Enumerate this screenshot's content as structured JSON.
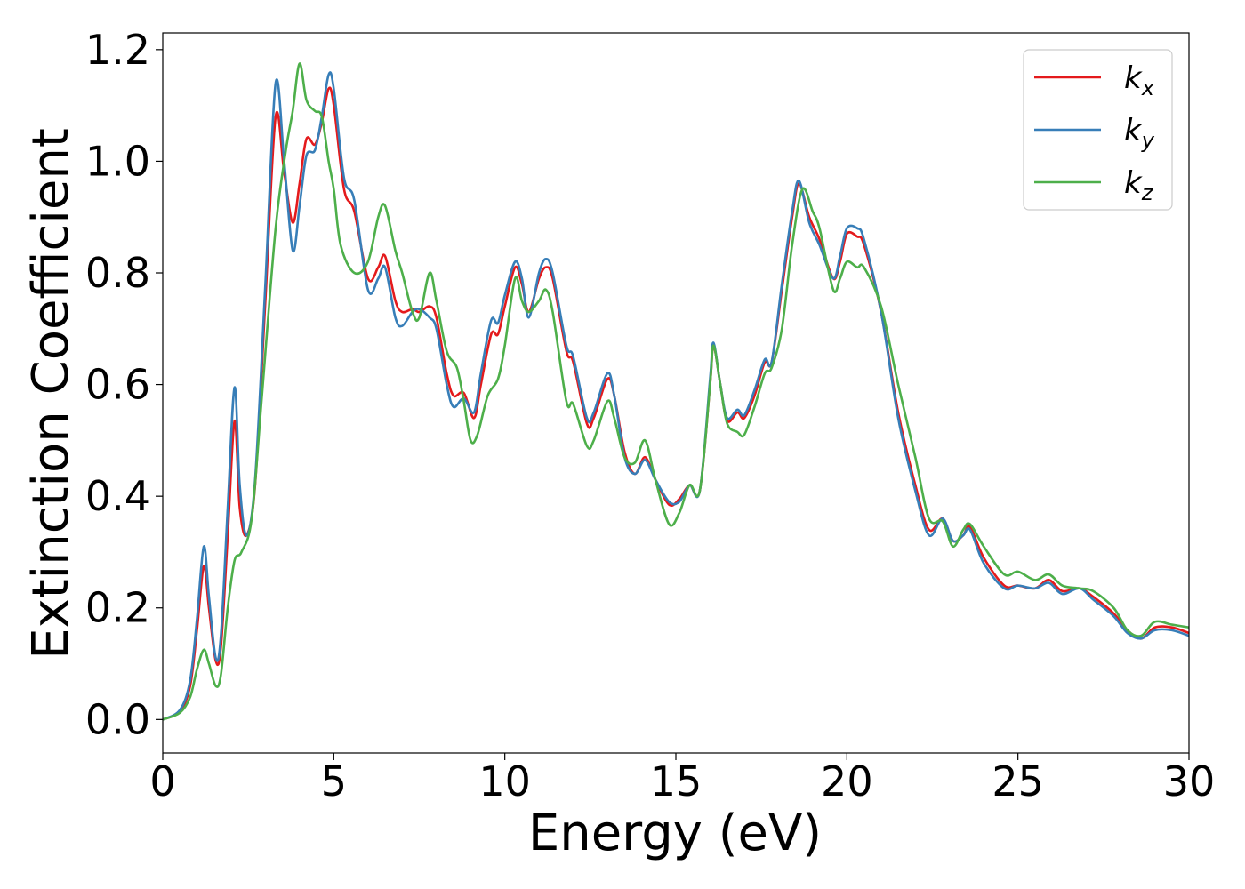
{
  "chart_data": {
    "type": "line",
    "title": "",
    "xlabel": "Energy (eV)",
    "ylabel": "Extinction Coefficient",
    "xlim": [
      0,
      30
    ],
    "ylim": [
      -0.06,
      1.23
    ],
    "xticks": [
      0,
      5,
      10,
      15,
      20,
      25,
      30
    ],
    "xtick_labels": [
      "0",
      "5",
      "10",
      "15",
      "20",
      "25",
      "30"
    ],
    "yticks": [
      0.0,
      0.2,
      0.4,
      0.6,
      0.8,
      1.0,
      1.2
    ],
    "ytick_labels": [
      "0.0",
      "0.2",
      "0.4",
      "0.6",
      "0.8",
      "1.0",
      "1.2"
    ],
    "grid": false,
    "legend_position": "top-right",
    "series": [
      {
        "name": "k",
        "subscript": "x",
        "color": "#e41a1c",
        "points": [
          [
            0,
            0.0
          ],
          [
            0.5,
            0.015
          ],
          [
            0.8,
            0.06
          ],
          [
            1.0,
            0.16
          ],
          [
            1.2,
            0.275
          ],
          [
            1.35,
            0.2
          ],
          [
            1.55,
            0.105
          ],
          [
            1.7,
            0.13
          ],
          [
            1.9,
            0.33
          ],
          [
            2.1,
            0.535
          ],
          [
            2.25,
            0.38
          ],
          [
            2.45,
            0.33
          ],
          [
            2.7,
            0.42
          ],
          [
            3.0,
            0.75
          ],
          [
            3.3,
            1.08
          ],
          [
            3.55,
            0.98
          ],
          [
            3.8,
            0.89
          ],
          [
            4.0,
            0.96
          ],
          [
            4.2,
            1.04
          ],
          [
            4.45,
            1.03
          ],
          [
            4.65,
            1.07
          ],
          [
            4.85,
            1.13
          ],
          [
            5.0,
            1.1
          ],
          [
            5.3,
            0.95
          ],
          [
            5.6,
            0.91
          ],
          [
            6.0,
            0.79
          ],
          [
            6.3,
            0.81
          ],
          [
            6.5,
            0.83
          ],
          [
            6.8,
            0.75
          ],
          [
            7.0,
            0.73
          ],
          [
            7.3,
            0.735
          ],
          [
            7.5,
            0.73
          ],
          [
            7.8,
            0.74
          ],
          [
            8.0,
            0.72
          ],
          [
            8.3,
            0.62
          ],
          [
            8.5,
            0.58
          ],
          [
            8.8,
            0.585
          ],
          [
            9.1,
            0.54
          ],
          [
            9.3,
            0.6
          ],
          [
            9.6,
            0.69
          ],
          [
            9.8,
            0.69
          ],
          [
            10.0,
            0.74
          ],
          [
            10.3,
            0.81
          ],
          [
            10.5,
            0.78
          ],
          [
            10.7,
            0.73
          ],
          [
            11.0,
            0.79
          ],
          [
            11.2,
            0.81
          ],
          [
            11.4,
            0.79
          ],
          [
            11.8,
            0.66
          ],
          [
            12.0,
            0.64
          ],
          [
            12.4,
            0.53
          ],
          [
            12.6,
            0.54
          ],
          [
            13.0,
            0.61
          ],
          [
            13.2,
            0.58
          ],
          [
            13.5,
            0.48
          ],
          [
            13.8,
            0.44
          ],
          [
            14.1,
            0.47
          ],
          [
            14.4,
            0.43
          ],
          [
            14.8,
            0.385
          ],
          [
            15.1,
            0.395
          ],
          [
            15.4,
            0.42
          ],
          [
            15.7,
            0.41
          ],
          [
            16.0,
            0.6
          ],
          [
            16.1,
            0.67
          ],
          [
            16.3,
            0.6
          ],
          [
            16.5,
            0.535
          ],
          [
            16.8,
            0.55
          ],
          [
            17.0,
            0.54
          ],
          [
            17.3,
            0.58
          ],
          [
            17.6,
            0.64
          ],
          [
            17.8,
            0.64
          ],
          [
            18.1,
            0.77
          ],
          [
            18.4,
            0.9
          ],
          [
            18.6,
            0.96
          ],
          [
            18.9,
            0.9
          ],
          [
            19.2,
            0.86
          ],
          [
            19.6,
            0.79
          ],
          [
            19.8,
            0.82
          ],
          [
            20.0,
            0.87
          ],
          [
            20.3,
            0.865
          ],
          [
            20.5,
            0.85
          ],
          [
            21.0,
            0.73
          ],
          [
            21.5,
            0.55
          ],
          [
            22.0,
            0.42
          ],
          [
            22.4,
            0.34
          ],
          [
            22.8,
            0.36
          ],
          [
            23.1,
            0.32
          ],
          [
            23.4,
            0.33
          ],
          [
            23.6,
            0.345
          ],
          [
            24.0,
            0.29
          ],
          [
            24.6,
            0.24
          ],
          [
            25.0,
            0.24
          ],
          [
            25.5,
            0.235
          ],
          [
            25.9,
            0.25
          ],
          [
            26.3,
            0.23
          ],
          [
            26.8,
            0.235
          ],
          [
            27.2,
            0.22
          ],
          [
            27.8,
            0.19
          ],
          [
            28.2,
            0.16
          ],
          [
            28.6,
            0.145
          ],
          [
            29.0,
            0.165
          ],
          [
            29.5,
            0.165
          ],
          [
            30.0,
            0.155
          ]
        ]
      },
      {
        "name": "k",
        "subscript": "y",
        "color": "#377eb8",
        "points": [
          [
            0,
            0.0
          ],
          [
            0.5,
            0.017
          ],
          [
            0.8,
            0.07
          ],
          [
            1.0,
            0.18
          ],
          [
            1.2,
            0.31
          ],
          [
            1.35,
            0.22
          ],
          [
            1.55,
            0.11
          ],
          [
            1.7,
            0.15
          ],
          [
            1.9,
            0.38
          ],
          [
            2.1,
            0.595
          ],
          [
            2.25,
            0.42
          ],
          [
            2.45,
            0.33
          ],
          [
            2.7,
            0.43
          ],
          [
            3.0,
            0.78
          ],
          [
            3.3,
            1.14
          ],
          [
            3.55,
            1.0
          ],
          [
            3.8,
            0.84
          ],
          [
            4.0,
            0.92
          ],
          [
            4.2,
            1.01
          ],
          [
            4.45,
            1.02
          ],
          [
            4.65,
            1.08
          ],
          [
            4.85,
            1.155
          ],
          [
            5.0,
            1.13
          ],
          [
            5.3,
            0.97
          ],
          [
            5.6,
            0.93
          ],
          [
            6.0,
            0.77
          ],
          [
            6.3,
            0.79
          ],
          [
            6.5,
            0.81
          ],
          [
            6.8,
            0.72
          ],
          [
            7.0,
            0.705
          ],
          [
            7.3,
            0.73
          ],
          [
            7.5,
            0.735
          ],
          [
            7.8,
            0.72
          ],
          [
            8.0,
            0.7
          ],
          [
            8.3,
            0.6
          ],
          [
            8.5,
            0.56
          ],
          [
            8.8,
            0.575
          ],
          [
            9.1,
            0.55
          ],
          [
            9.3,
            0.62
          ],
          [
            9.6,
            0.715
          ],
          [
            9.8,
            0.71
          ],
          [
            10.0,
            0.76
          ],
          [
            10.3,
            0.82
          ],
          [
            10.5,
            0.79
          ],
          [
            10.7,
            0.72
          ],
          [
            11.0,
            0.8
          ],
          [
            11.2,
            0.825
          ],
          [
            11.4,
            0.8
          ],
          [
            11.8,
            0.67
          ],
          [
            12.0,
            0.65
          ],
          [
            12.4,
            0.54
          ],
          [
            12.6,
            0.55
          ],
          [
            13.0,
            0.62
          ],
          [
            13.2,
            0.58
          ],
          [
            13.5,
            0.47
          ],
          [
            13.8,
            0.44
          ],
          [
            14.1,
            0.465
          ],
          [
            14.4,
            0.43
          ],
          [
            14.8,
            0.39
          ],
          [
            15.1,
            0.39
          ],
          [
            15.4,
            0.42
          ],
          [
            15.7,
            0.41
          ],
          [
            16.0,
            0.61
          ],
          [
            16.1,
            0.675
          ],
          [
            16.3,
            0.6
          ],
          [
            16.5,
            0.54
          ],
          [
            16.8,
            0.555
          ],
          [
            17.0,
            0.545
          ],
          [
            17.3,
            0.59
          ],
          [
            17.6,
            0.645
          ],
          [
            17.8,
            0.64
          ],
          [
            18.1,
            0.78
          ],
          [
            18.4,
            0.91
          ],
          [
            18.6,
            0.965
          ],
          [
            18.9,
            0.89
          ],
          [
            19.2,
            0.85
          ],
          [
            19.6,
            0.79
          ],
          [
            19.8,
            0.83
          ],
          [
            20.0,
            0.88
          ],
          [
            20.3,
            0.88
          ],
          [
            20.5,
            0.86
          ],
          [
            21.0,
            0.73
          ],
          [
            21.5,
            0.54
          ],
          [
            22.0,
            0.41
          ],
          [
            22.4,
            0.33
          ],
          [
            22.8,
            0.36
          ],
          [
            23.1,
            0.32
          ],
          [
            23.4,
            0.33
          ],
          [
            23.6,
            0.34
          ],
          [
            24.0,
            0.28
          ],
          [
            24.6,
            0.235
          ],
          [
            25.0,
            0.24
          ],
          [
            25.5,
            0.235
          ],
          [
            25.9,
            0.245
          ],
          [
            26.3,
            0.225
          ],
          [
            26.8,
            0.235
          ],
          [
            27.2,
            0.215
          ],
          [
            27.8,
            0.185
          ],
          [
            28.2,
            0.155
          ],
          [
            28.6,
            0.145
          ],
          [
            29.0,
            0.16
          ],
          [
            29.5,
            0.16
          ],
          [
            30.0,
            0.15
          ]
        ]
      },
      {
        "name": "k",
        "subscript": "z",
        "color": "#4daf4a",
        "points": [
          [
            0,
            0.0
          ],
          [
            0.5,
            0.012
          ],
          [
            0.8,
            0.04
          ],
          [
            1.0,
            0.09
          ],
          [
            1.2,
            0.125
          ],
          [
            1.35,
            0.1
          ],
          [
            1.55,
            0.06
          ],
          [
            1.7,
            0.08
          ],
          [
            1.9,
            0.2
          ],
          [
            2.1,
            0.285
          ],
          [
            2.3,
            0.3
          ],
          [
            2.6,
            0.36
          ],
          [
            2.9,
            0.58
          ],
          [
            3.3,
            0.88
          ],
          [
            3.6,
            1.02
          ],
          [
            3.8,
            1.09
          ],
          [
            4.0,
            1.175
          ],
          [
            4.2,
            1.11
          ],
          [
            4.45,
            1.09
          ],
          [
            4.65,
            1.08
          ],
          [
            4.85,
            1.0
          ],
          [
            5.0,
            0.95
          ],
          [
            5.2,
            0.85
          ],
          [
            5.6,
            0.8
          ],
          [
            6.0,
            0.82
          ],
          [
            6.3,
            0.9
          ],
          [
            6.5,
            0.92
          ],
          [
            6.8,
            0.84
          ],
          [
            7.0,
            0.8
          ],
          [
            7.3,
            0.73
          ],
          [
            7.5,
            0.72
          ],
          [
            7.8,
            0.8
          ],
          [
            8.0,
            0.75
          ],
          [
            8.3,
            0.66
          ],
          [
            8.6,
            0.63
          ],
          [
            8.8,
            0.57
          ],
          [
            9.0,
            0.5
          ],
          [
            9.2,
            0.51
          ],
          [
            9.5,
            0.58
          ],
          [
            9.8,
            0.61
          ],
          [
            10.0,
            0.67
          ],
          [
            10.3,
            0.79
          ],
          [
            10.5,
            0.75
          ],
          [
            10.7,
            0.73
          ],
          [
            11.0,
            0.75
          ],
          [
            11.2,
            0.77
          ],
          [
            11.4,
            0.73
          ],
          [
            11.8,
            0.57
          ],
          [
            12.0,
            0.565
          ],
          [
            12.4,
            0.49
          ],
          [
            12.6,
            0.5
          ],
          [
            13.0,
            0.57
          ],
          [
            13.2,
            0.54
          ],
          [
            13.5,
            0.47
          ],
          [
            13.8,
            0.46
          ],
          [
            14.1,
            0.5
          ],
          [
            14.4,
            0.43
          ],
          [
            14.8,
            0.35
          ],
          [
            15.1,
            0.37
          ],
          [
            15.4,
            0.42
          ],
          [
            15.7,
            0.41
          ],
          [
            16.0,
            0.6
          ],
          [
            16.1,
            0.67
          ],
          [
            16.3,
            0.6
          ],
          [
            16.5,
            0.53
          ],
          [
            16.8,
            0.515
          ],
          [
            17.0,
            0.51
          ],
          [
            17.3,
            0.56
          ],
          [
            17.6,
            0.62
          ],
          [
            17.8,
            0.63
          ],
          [
            18.1,
            0.7
          ],
          [
            18.4,
            0.85
          ],
          [
            18.7,
            0.95
          ],
          [
            19.0,
            0.91
          ],
          [
            19.2,
            0.88
          ],
          [
            19.6,
            0.77
          ],
          [
            19.8,
            0.79
          ],
          [
            20.0,
            0.82
          ],
          [
            20.3,
            0.81
          ],
          [
            20.5,
            0.81
          ],
          [
            21.0,
            0.74
          ],
          [
            21.5,
            0.6
          ],
          [
            22.0,
            0.47
          ],
          [
            22.4,
            0.36
          ],
          [
            22.8,
            0.355
          ],
          [
            23.1,
            0.31
          ],
          [
            23.4,
            0.34
          ],
          [
            23.6,
            0.35
          ],
          [
            24.0,
            0.31
          ],
          [
            24.6,
            0.26
          ],
          [
            25.0,
            0.265
          ],
          [
            25.5,
            0.25
          ],
          [
            25.9,
            0.26
          ],
          [
            26.3,
            0.24
          ],
          [
            26.8,
            0.235
          ],
          [
            27.2,
            0.23
          ],
          [
            27.8,
            0.2
          ],
          [
            28.2,
            0.16
          ],
          [
            28.6,
            0.15
          ],
          [
            29.0,
            0.175
          ],
          [
            29.5,
            0.17
          ],
          [
            30.0,
            0.165
          ]
        ]
      }
    ]
  }
}
